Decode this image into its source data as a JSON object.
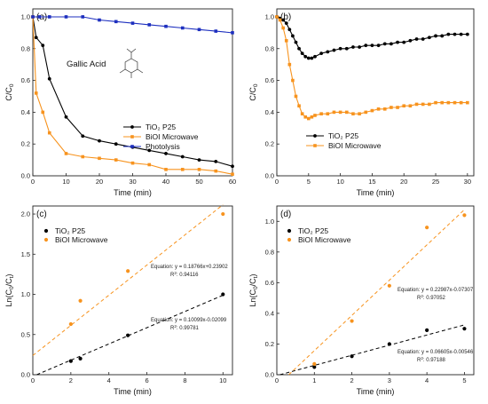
{
  "chart_data": [
    {
      "type": "line",
      "panel_label": "(a)",
      "xlabel": "Time (min)",
      "ylabel_main": "C/C",
      "ylabel_sub": "0",
      "xlim": [
        0,
        60
      ],
      "ylim": [
        0,
        1.05
      ],
      "xticks": [
        "0",
        "10",
        "20",
        "30",
        "40",
        "50",
        "60"
      ],
      "yticks": [
        "0.0",
        "0.2",
        "0.4",
        "0.6",
        "0.8",
        "1.0"
      ],
      "annotation": "Gallic Acid",
      "molecule": "gallic-acid-structure",
      "legend_position": "center-right",
      "series": [
        {
          "name": "TiO₂ P25",
          "color": "#000000",
          "marker": "circle",
          "x": [
            0,
            1,
            3,
            5,
            10,
            15,
            20,
            25,
            30,
            35,
            40,
            45,
            50,
            55,
            60
          ],
          "y": [
            1.0,
            0.87,
            0.82,
            0.61,
            0.37,
            0.25,
            0.22,
            0.2,
            0.18,
            0.16,
            0.14,
            0.12,
            0.1,
            0.09,
            0.06
          ]
        },
        {
          "name": "BiOI Microwave",
          "color": "#f7931e",
          "marker": "square",
          "x": [
            0,
            1,
            3,
            5,
            10,
            15,
            20,
            25,
            30,
            35,
            40,
            45,
            50,
            55,
            60
          ],
          "y": [
            1.0,
            0.52,
            0.4,
            0.27,
            0.14,
            0.12,
            0.11,
            0.1,
            0.08,
            0.07,
            0.04,
            0.04,
            0.04,
            0.03,
            0.01
          ]
        },
        {
          "name": "Photolysis",
          "color": "#1d2fbf",
          "marker": "square",
          "x": [
            0,
            2,
            5,
            10,
            15,
            20,
            25,
            30,
            35,
            40,
            45,
            50,
            55,
            60
          ],
          "y": [
            1.0,
            1.0,
            1.0,
            1.0,
            1.0,
            0.98,
            0.97,
            0.96,
            0.95,
            0.94,
            0.93,
            0.92,
            0.91,
            0.9
          ]
        }
      ]
    },
    {
      "type": "line",
      "panel_label": "(b)",
      "xlabel": "Time (min)",
      "ylabel_main": "C/C",
      "ylabel_sub": "0",
      "xlim": [
        0,
        31
      ],
      "ylim": [
        0,
        1.05
      ],
      "xticks": [
        "0",
        "5",
        "10",
        "15",
        "20",
        "25",
        "30"
      ],
      "yticks": [
        "0.0",
        "0.2",
        "0.4",
        "0.6",
        "0.8",
        "1.0"
      ],
      "legend_position": "bottom-center",
      "series": [
        {
          "name": "TiO₂ P25",
          "color": "#000000",
          "marker": "circle",
          "x": [
            0,
            0.5,
            1,
            1.5,
            2,
            2.5,
            3,
            3.5,
            4,
            4.5,
            5,
            5.5,
            6,
            7,
            8,
            9,
            10,
            11,
            12,
            13,
            14,
            15,
            16,
            17,
            18,
            19,
            20,
            21,
            22,
            23,
            24,
            25,
            26,
            27,
            28,
            29,
            30
          ],
          "y": [
            1.0,
            0.99,
            0.98,
            0.96,
            0.92,
            0.88,
            0.84,
            0.8,
            0.77,
            0.75,
            0.74,
            0.74,
            0.75,
            0.77,
            0.78,
            0.79,
            0.8,
            0.8,
            0.81,
            0.81,
            0.82,
            0.82,
            0.82,
            0.83,
            0.83,
            0.84,
            0.84,
            0.85,
            0.86,
            0.86,
            0.87,
            0.88,
            0.88,
            0.89,
            0.89,
            0.89,
            0.89
          ]
        },
        {
          "name": "BiOI Microwave",
          "color": "#f7931e",
          "marker": "square",
          "x": [
            0,
            0.5,
            1,
            1.5,
            2,
            2.5,
            3,
            3.5,
            4,
            4.5,
            5,
            5.5,
            6,
            7,
            8,
            9,
            10,
            11,
            12,
            13,
            14,
            15,
            16,
            17,
            18,
            19,
            20,
            21,
            22,
            23,
            24,
            25,
            26,
            27,
            28,
            29,
            30
          ],
          "y": [
            1.0,
            0.98,
            0.93,
            0.85,
            0.7,
            0.6,
            0.5,
            0.44,
            0.39,
            0.37,
            0.36,
            0.37,
            0.38,
            0.39,
            0.39,
            0.4,
            0.4,
            0.4,
            0.39,
            0.39,
            0.4,
            0.41,
            0.42,
            0.42,
            0.43,
            0.43,
            0.44,
            0.44,
            0.45,
            0.45,
            0.45,
            0.46,
            0.46,
            0.46,
            0.46,
            0.46,
            0.46
          ]
        }
      ]
    },
    {
      "type": "scatter",
      "panel_label": "(c)",
      "xlabel": "Time (min)",
      "ylabel_pre": "Ln(C",
      "ylabel_sub1": "0",
      "ylabel_mid": "/C",
      "ylabel_sub2": "t",
      "ylabel_post": ")",
      "xlim": [
        0,
        10.5
      ],
      "ylim": [
        0,
        2.1
      ],
      "xticks": [
        "0",
        "2",
        "4",
        "6",
        "8",
        "10"
      ],
      "yticks": [
        "0.0",
        "0.5",
        "1.0",
        "1.5",
        "2.0"
      ],
      "legend_position": "top-left",
      "series": [
        {
          "name": "TiO₂ P25",
          "color": "#000000",
          "x": [
            2,
            2.5,
            5,
            10
          ],
          "y": [
            0.17,
            0.2,
            0.49,
            1.0
          ],
          "fit": {
            "slope": 0.10099,
            "intercept": -0.02099
          },
          "equation": "Equation: y = 0.10099x-0.02099",
          "r2_pre": "R",
          "r2_sup": "2",
          "r2_val": ": 0.99781"
        },
        {
          "name": "BiOI Microwave",
          "color": "#f7931e",
          "x": [
            2,
            2.5,
            5,
            10
          ],
          "y": [
            0.63,
            0.92,
            1.29,
            2.0
          ],
          "fit": {
            "slope": 0.18766,
            "intercept": 0.23902
          },
          "equation": "Equation: y = 0.18766x+0.23902",
          "r2_pre": "R",
          "r2_sup": "2",
          "r2_val": ": 0.94116"
        }
      ]
    },
    {
      "type": "scatter",
      "panel_label": "(d)",
      "xlabel": "Time (min)",
      "ylabel_pre": "Ln(C",
      "ylabel_sub1": "0",
      "ylabel_mid": "/C",
      "ylabel_sub2": "t",
      "ylabel_post": ")",
      "xlim": [
        0,
        5.25
      ],
      "ylim": [
        0,
        1.1
      ],
      "xticks": [
        "0",
        "1",
        "2",
        "3",
        "4",
        "5"
      ],
      "yticks": [
        "0.0",
        "0.2",
        "0.4",
        "0.6",
        "0.8",
        "1.0"
      ],
      "legend_position": "top-left",
      "series": [
        {
          "name": "TiO₂ P25",
          "color": "#000000",
          "x": [
            1,
            2,
            3,
            4,
            5
          ],
          "y": [
            0.05,
            0.12,
            0.2,
            0.29,
            0.3
          ],
          "fit": {
            "slope": 0.06605,
            "intercept": -0.00546
          },
          "equation": "Equation: y = 0.06605x-0.00546",
          "r2_pre": "R",
          "r2_sup": "2",
          "r2_val": ": 0.97188"
        },
        {
          "name": "BiOI Microwave",
          "color": "#f7931e",
          "x": [
            1,
            2,
            3,
            4,
            5
          ],
          "y": [
            0.07,
            0.35,
            0.58,
            0.96,
            1.04
          ],
          "fit": {
            "slope": 0.22987,
            "intercept": -0.07307
          },
          "equation": "Equation: y = 0.22987x-0.07307",
          "r2_pre": "R",
          "r2_sup": "2",
          "r2_val": ": 0.97052"
        }
      ]
    }
  ]
}
